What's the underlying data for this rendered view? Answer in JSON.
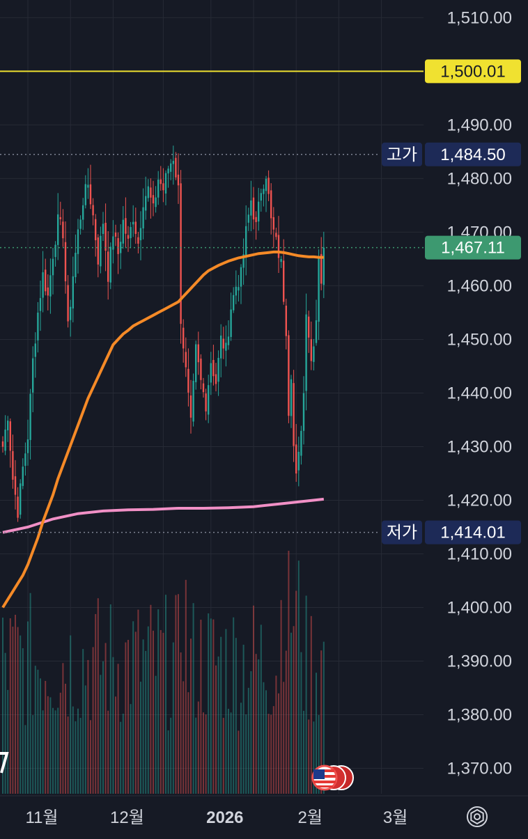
{
  "chart_data": {
    "type": "candlestick",
    "price_axis": {
      "min": 1365,
      "max": 1512,
      "ticks": [
        "1,510.00",
        "1,490.00",
        "1,480.00",
        "1,470.00",
        "1,460.00",
        "1,450.00",
        "1,440.00",
        "1,430.00",
        "1,420.00",
        "1,410.00",
        "1,400.00",
        "1,390.00",
        "1,380.00",
        "1,370.00"
      ],
      "tick_values": [
        1510,
        1490,
        1480,
        1470,
        1460,
        1450,
        1440,
        1430,
        1420,
        1410,
        1400,
        1390,
        1380,
        1370
      ]
    },
    "time_axis": {
      "labels": [
        {
          "text": "11월",
          "index": 10,
          "bold": false
        },
        {
          "text": "12월",
          "index": 44,
          "bold": false
        },
        {
          "text": "2026",
          "index": 83,
          "bold": true
        },
        {
          "text": "2월",
          "index": 117,
          "bold": false
        },
        {
          "text": "3월",
          "index": 151,
          "bold": false
        }
      ],
      "total_slots": 171
    },
    "markers": {
      "alert": {
        "value": 1500.01,
        "label": "1,500.01",
        "color": "#f0e130"
      },
      "high": {
        "value": 1484.5,
        "tag": "고가",
        "label": "1,484.50"
      },
      "low": {
        "value": 1414.01,
        "tag": "저가",
        "label": "1,414.01"
      },
      "last": {
        "value": 1467.11,
        "label": "1,467.11",
        "color": "#3d9970"
      }
    },
    "key_points": [
      [
        0,
        1430
      ],
      [
        2,
        1436
      ],
      [
        4,
        1424
      ],
      [
        6,
        1418
      ],
      [
        8,
        1426
      ],
      [
        10,
        1432
      ],
      [
        12,
        1446
      ],
      [
        14,
        1455
      ],
      [
        16,
        1462
      ],
      [
        18,
        1458
      ],
      [
        20,
        1466
      ],
      [
        22,
        1472
      ],
      [
        24,
        1470
      ],
      [
        26,
        1452
      ],
      [
        28,
        1462
      ],
      [
        30,
        1470
      ],
      [
        32,
        1476
      ],
      [
        34,
        1479
      ],
      [
        36,
        1473
      ],
      [
        38,
        1465
      ],
      [
        40,
        1472
      ],
      [
        42,
        1462
      ],
      [
        44,
        1470
      ],
      [
        46,
        1466
      ],
      [
        48,
        1472
      ],
      [
        50,
        1468
      ],
      [
        52,
        1473
      ],
      [
        54,
        1468
      ],
      [
        56,
        1476
      ],
      [
        58,
        1478
      ],
      [
        60,
        1474
      ],
      [
        62,
        1480
      ],
      [
        64,
        1478
      ],
      [
        66,
        1482
      ],
      [
        68,
        1484
      ],
      [
        70,
        1478
      ],
      [
        71,
        1454
      ],
      [
        73,
        1444
      ],
      [
        75,
        1434
      ],
      [
        77,
        1448
      ],
      [
        79,
        1442
      ],
      [
        81,
        1438
      ],
      [
        83,
        1446
      ],
      [
        85,
        1442
      ],
      [
        87,
        1450
      ],
      [
        89,
        1448
      ],
      [
        91,
        1456
      ],
      [
        93,
        1460
      ],
      [
        95,
        1462
      ],
      [
        97,
        1470
      ],
      [
        99,
        1476
      ],
      [
        101,
        1471
      ],
      [
        103,
        1478
      ],
      [
        105,
        1481
      ],
      [
        107,
        1472
      ],
      [
        109,
        1468
      ],
      [
        111,
        1464
      ],
      [
        113,
        1452
      ],
      [
        114,
        1437
      ],
      [
        115,
        1444
      ],
      [
        116,
        1430
      ],
      [
        117,
        1424
      ],
      [
        118,
        1428
      ],
      [
        120,
        1440
      ],
      [
        121,
        1456
      ],
      [
        123,
        1446
      ],
      [
        125,
        1454
      ],
      [
        126,
        1466
      ],
      [
        127,
        1461
      ],
      [
        128,
        1467.11
      ]
    ],
    "ma_orange": [
      [
        0,
        1400
      ],
      [
        2,
        1401.5
      ],
      [
        4,
        1403
      ],
      [
        6,
        1404.5
      ],
      [
        8,
        1406
      ],
      [
        10,
        1408
      ],
      [
        12,
        1410.5
      ],
      [
        14,
        1413
      ],
      [
        16,
        1416
      ],
      [
        18,
        1418.5
      ],
      [
        20,
        1421
      ],
      [
        22,
        1424
      ],
      [
        24,
        1426.5
      ],
      [
        26,
        1429
      ],
      [
        28,
        1431.5
      ],
      [
        30,
        1434
      ],
      [
        32,
        1436.5
      ],
      [
        34,
        1439
      ],
      [
        36,
        1441
      ],
      [
        38,
        1443
      ],
      [
        40,
        1445
      ],
      [
        42,
        1447
      ],
      [
        44,
        1449
      ],
      [
        46,
        1450
      ],
      [
        48,
        1451
      ],
      [
        50,
        1451.7
      ],
      [
        52,
        1452.5
      ],
      [
        54,
        1453
      ],
      [
        56,
        1453.5
      ],
      [
        58,
        1454
      ],
      [
        60,
        1454.5
      ],
      [
        62,
        1455
      ],
      [
        64,
        1455.5
      ],
      [
        66,
        1456
      ],
      [
        68,
        1456.5
      ],
      [
        70,
        1457
      ],
      [
        72,
        1458
      ],
      [
        74,
        1459
      ],
      [
        76,
        1460
      ],
      [
        78,
        1461
      ],
      [
        80,
        1462
      ],
      [
        82,
        1462.8
      ],
      [
        84,
        1463.3
      ],
      [
        86,
        1463.8
      ],
      [
        88,
        1464.2
      ],
      [
        90,
        1464.6
      ],
      [
        92,
        1464.9
      ],
      [
        94,
        1465.2
      ],
      [
        96,
        1465.4
      ],
      [
        98,
        1465.6
      ],
      [
        100,
        1465.8
      ],
      [
        102,
        1466
      ],
      [
        104,
        1466.1
      ],
      [
        106,
        1466.2
      ],
      [
        108,
        1466.3
      ],
      [
        110,
        1466.3
      ],
      [
        112,
        1466.2
      ],
      [
        114,
        1466
      ],
      [
        116,
        1465.8
      ],
      [
        118,
        1465.6
      ],
      [
        120,
        1465.5
      ],
      [
        122,
        1465.4
      ],
      [
        124,
        1465.4
      ],
      [
        126,
        1465.3
      ],
      [
        128,
        1465.3
      ]
    ],
    "ma_pink": [
      [
        0,
        1414
      ],
      [
        10,
        1415
      ],
      [
        20,
        1416.5
      ],
      [
        30,
        1417.5
      ],
      [
        40,
        1418
      ],
      [
        50,
        1418.2
      ],
      [
        60,
        1418.3
      ],
      [
        70,
        1418.5
      ],
      [
        80,
        1418.5
      ],
      [
        90,
        1418.6
      ],
      [
        100,
        1418.8
      ],
      [
        110,
        1419.3
      ],
      [
        120,
        1419.8
      ],
      [
        128,
        1420.2
      ]
    ],
    "colors": {
      "up": "#26a69a",
      "down": "#ef5350",
      "ma_orange": "#f58a27",
      "ma_pink": "#f190c6",
      "grid": "#262a35",
      "tag_bg": "#1d2a57",
      "bg": "#161a25"
    },
    "icon": "us-flag-icon"
  }
}
